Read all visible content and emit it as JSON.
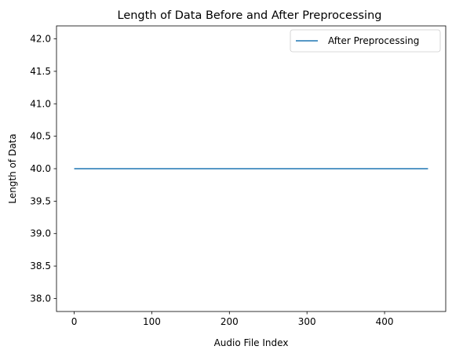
{
  "chart_data": {
    "type": "line",
    "title": "Length of Data Before and After Preprocessing",
    "xlabel": "Audio File Index",
    "ylabel": "Length of Data",
    "xlim": [
      -22.8,
      478.8
    ],
    "ylim": [
      37.8,
      42.2
    ],
    "x_ticks": [
      0,
      100,
      200,
      300,
      400
    ],
    "x_tick_labels": [
      "0",
      "100",
      "200",
      "300",
      "400"
    ],
    "y_ticks": [
      38.0,
      38.5,
      39.0,
      39.5,
      40.0,
      40.5,
      41.0,
      41.5,
      42.0
    ],
    "y_tick_labels": [
      "38.0",
      "38.5",
      "39.0",
      "39.5",
      "40.0",
      "40.5",
      "41.0",
      "41.5",
      "42.0"
    ],
    "grid": false,
    "legend_position": "top-right",
    "series": [
      {
        "name": "After Preprocessing",
        "color": "#1f77b4",
        "x": [
          0,
          456
        ],
        "values": [
          40,
          40
        ]
      }
    ]
  }
}
